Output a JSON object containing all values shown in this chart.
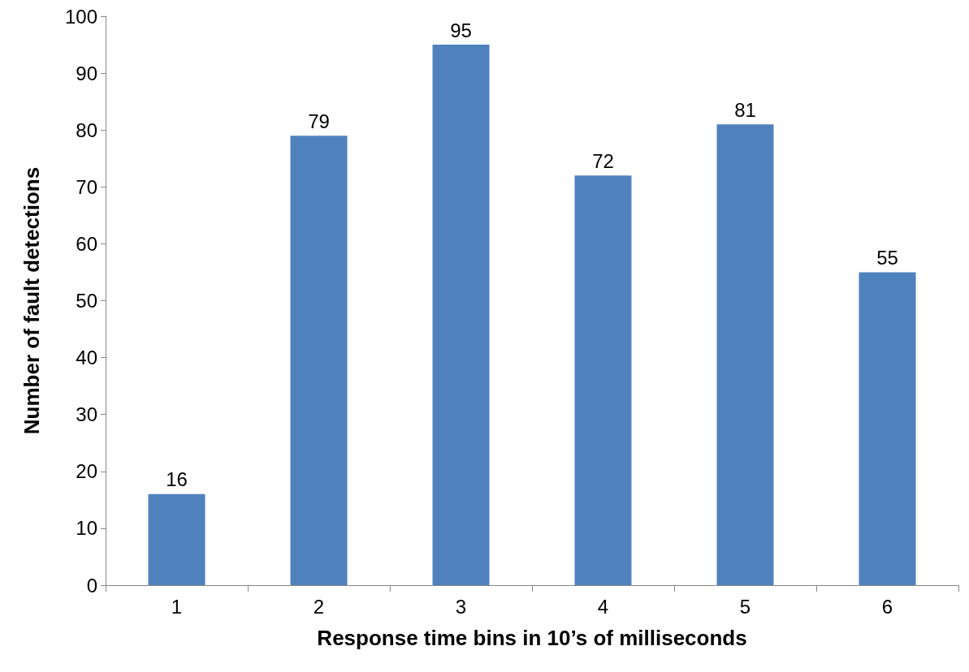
{
  "chart_data": {
    "type": "bar",
    "xlabel": "Response time bins in 10’s of milliseconds",
    "ylabel": "Number of fault detections",
    "categories": [
      "1",
      "2",
      "3",
      "4",
      "5",
      "6"
    ],
    "values": [
      16,
      79,
      95,
      72,
      81,
      55
    ],
    "color": "#4f81bd",
    "ylim": [
      0,
      100
    ],
    "yticks": [
      0,
      10,
      20,
      30,
      40,
      50,
      60,
      70,
      80,
      90,
      100
    ],
    "grid": false,
    "data_labels": true
  }
}
